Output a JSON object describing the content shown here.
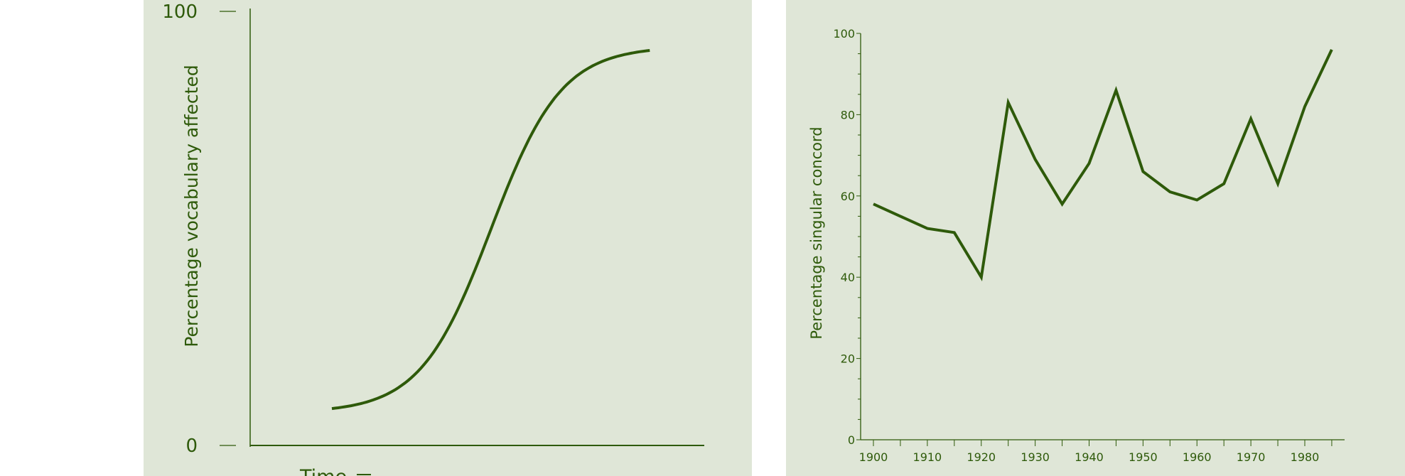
{
  "colors": {
    "background": "#dfe6d7",
    "line": "#2e5a0a"
  },
  "chart_data": [
    {
      "type": "line",
      "title": "",
      "xlabel": "Time",
      "ylabel": "Percentage  vocabulary affected",
      "yticks": [
        "0",
        "100"
      ],
      "ylim": [
        0,
        100
      ],
      "xlim": [
        0,
        100
      ],
      "grid": false,
      "series": [
        {
          "name": "S-curve",
          "x": [
            18,
            88
          ],
          "y_start": 8.5,
          "y_end": 91,
          "shape": "logistic"
        }
      ]
    },
    {
      "type": "line",
      "title": "",
      "xlabel": "",
      "ylabel": "Percentage singular concord",
      "ylim": [
        0,
        100
      ],
      "xlim": [
        1897,
        1989
      ],
      "grid": false,
      "yticks": [
        "0",
        "20",
        "40",
        "60",
        "80",
        "100"
      ],
      "xticks": [
        "1900",
        "1910",
        "1920",
        "1930",
        "1940",
        "1950",
        "1960",
        "1970",
        "1980"
      ],
      "series": [
        {
          "name": "singular concord",
          "x": [
            1900,
            1905,
            1910,
            1915,
            1920,
            1925,
            1930,
            1935,
            1940,
            1945,
            1950,
            1955,
            1960,
            1965,
            1970,
            1975,
            1980,
            1985
          ],
          "y": [
            58,
            55,
            52,
            51,
            40,
            83,
            69,
            58,
            68,
            86,
            66,
            61,
            59,
            63,
            79,
            63,
            82,
            96
          ]
        }
      ]
    }
  ]
}
